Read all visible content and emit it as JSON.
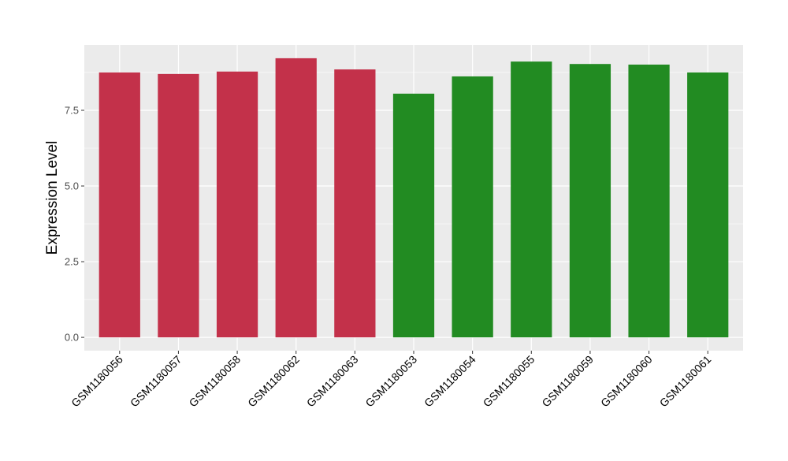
{
  "chart_data": {
    "type": "bar",
    "title": "",
    "xlabel": "",
    "ylabel": "Expression Level",
    "categories": [
      "GSM1180056",
      "GSM1180057",
      "GSM1180058",
      "GSM1180062",
      "GSM1180063",
      "GSM1180053",
      "GSM1180054",
      "GSM1180055",
      "GSM1180059",
      "GSM1180060",
      "GSM1180061"
    ],
    "values": [
      8.75,
      8.7,
      8.78,
      9.22,
      8.85,
      8.05,
      8.62,
      9.11,
      9.03,
      9.01,
      8.75
    ],
    "bar_colors": [
      "#C3314A",
      "#C3314A",
      "#C3314A",
      "#C3314A",
      "#C3314A",
      "#228B22",
      "#228B22",
      "#228B22",
      "#228B22",
      "#228B22",
      "#228B22"
    ],
    "yticks": [
      "0.0",
      "2.5",
      "5.0",
      "7.5"
    ],
    "ylim": [
      -0.44,
      9.66
    ],
    "grid": true,
    "panel_background": "#EBEBEB"
  }
}
